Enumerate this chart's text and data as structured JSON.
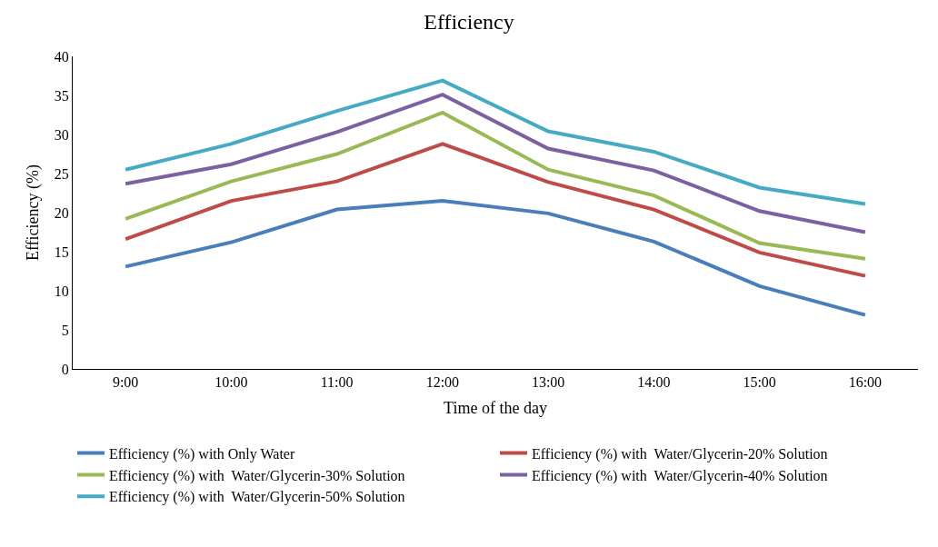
{
  "chart_data": {
    "type": "line",
    "title": "Efficiency",
    "xlabel": "Time of the day",
    "ylabel": "Efficiency (%)",
    "categories": [
      "9:00",
      "10:00",
      "11:00",
      "12:00",
      "13:00",
      "14:00",
      "15:00",
      "16:00"
    ],
    "ylim": [
      0,
      40
    ],
    "yticks": [
      0,
      5,
      10,
      15,
      20,
      25,
      30,
      35,
      40
    ],
    "grid": false,
    "legend": "bottom",
    "marker": "none",
    "line_style": "solid",
    "series": [
      {
        "name": "Efficiency (%) with Only Water",
        "color": "#4a7ebb",
        "values": [
          13.1,
          16.2,
          20.4,
          21.5,
          19.9,
          16.3,
          10.6,
          6.9
        ]
      },
      {
        "name": "Efficiency (%) with  Water/Glycerin-20% Solution",
        "color": "#be4b48",
        "values": [
          16.6,
          21.5,
          24.0,
          28.8,
          23.9,
          20.4,
          14.9,
          11.9
        ]
      },
      {
        "name": "Efficiency (%) with  Water/Glycerin-30% Solution",
        "color": "#98b954",
        "values": [
          19.2,
          24.0,
          27.5,
          32.8,
          25.5,
          22.2,
          16.1,
          14.1
        ]
      },
      {
        "name": "Efficiency (%) with  Water/Glycerin-40% Solution",
        "color": "#7d60a0",
        "values": [
          23.7,
          26.2,
          30.3,
          35.1,
          28.2,
          25.4,
          20.2,
          17.5
        ]
      },
      {
        "name": "Efficiency (%) with  Water/Glycerin-50% Solution",
        "color": "#46aac5",
        "values": [
          25.5,
          28.8,
          33.0,
          36.9,
          30.4,
          27.8,
          23.2,
          21.1
        ]
      }
    ]
  }
}
